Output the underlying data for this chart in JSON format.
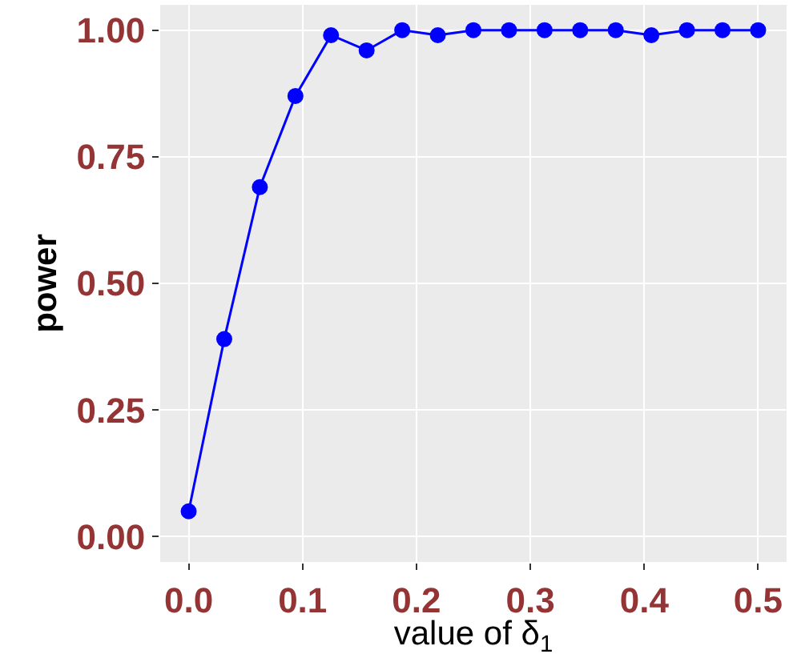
{
  "chart_data": {
    "type": "line",
    "xlabel": "value of δ$_{1}$",
    "ylabel": "power",
    "x": [
      0,
      0.03125,
      0.0625,
      0.09375,
      0.125,
      0.15625,
      0.1875,
      0.21875,
      0.25,
      0.28125,
      0.3125,
      0.34375,
      0.375,
      0.40625,
      0.4375,
      0.46875,
      0.5
    ],
    "series": [
      {
        "color": "#0000ff",
        "values": [
          0.05,
          0.39,
          0.69,
          0.87,
          0.99,
          0.96,
          1.0,
          0.99,
          1.0,
          1.0,
          1.0,
          1.0,
          1.0,
          0.99,
          1.0,
          1.0,
          1.0
        ]
      }
    ],
    "xlim": [
      -0.025,
      0.525
    ],
    "ylim": [
      -0.05,
      1.05
    ],
    "xticks": [
      {
        "value": 0,
        "label": "0.0"
      },
      0.1,
      0.2,
      0.3,
      0.4,
      0.5
    ],
    "yticks": [
      {
        "value": 0,
        "label": "0.00"
      },
      0.25,
      {
        "value": 0.5,
        "label": "0.50"
      },
      0.75,
      {
        "value": 1,
        "label": "1.00"
      }
    ],
    "grid": true,
    "marker": "circle",
    "line_style": "solid"
  }
}
